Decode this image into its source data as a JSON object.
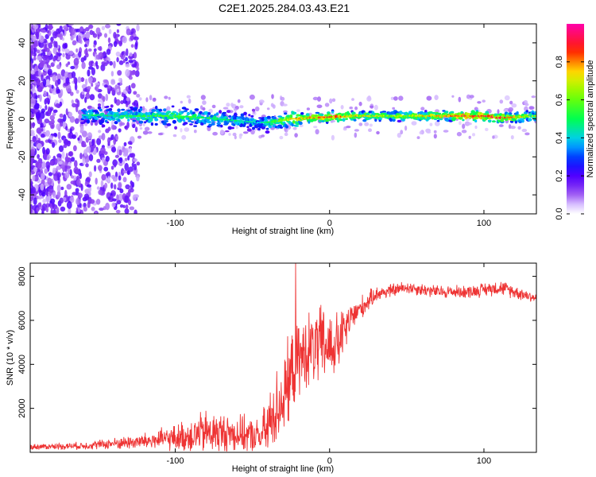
{
  "title": "C2E1.2025.284.03.43.E21",
  "chart_data": [
    {
      "type": "heatmap",
      "name": "spectrogram",
      "xlabel": "Height of straight line (km)",
      "ylabel": "Frequency (Hz)",
      "xlim": [
        -194,
        134
      ],
      "ylim": [
        -50,
        50
      ],
      "x_ticks": [
        -100,
        0,
        100
      ],
      "y_ticks": [
        -40,
        -20,
        0,
        20,
        40
      ],
      "colorbar": {
        "label": "Normalized spectral amplitude",
        "range": [
          0,
          1
        ],
        "ticks": [
          "0.0",
          "0.2",
          "0.4",
          "0.6",
          "0.8"
        ],
        "tick_values": [
          0.0,
          0.2,
          0.4,
          0.6,
          0.8
        ]
      },
      "ridge": {
        "x": [
          -160,
          -130,
          -100,
          -80,
          -60,
          -45,
          -35,
          -25,
          -10,
          0,
          20,
          50,
          80,
          100,
          110,
          134
        ],
        "y": [
          2,
          1.5,
          1.5,
          0.5,
          -1,
          -2,
          -1.5,
          0,
          0.5,
          1,
          1.5,
          1.5,
          1.5,
          1.5,
          0.5,
          1.5
        ],
        "peak_amplitude": [
          0.45,
          0.5,
          0.55,
          0.5,
          0.45,
          0.4,
          0.55,
          0.7,
          0.8,
          0.85,
          0.7,
          0.65,
          0.8,
          0.9,
          0.85,
          0.6
        ]
      }
    },
    {
      "type": "line",
      "name": "snr",
      "xlabel": "Height of straight line (km)",
      "ylabel": "SNR (10 * v/v)",
      "xlim": [
        -194,
        134
      ],
      "ylim": [
        0,
        8600
      ],
      "x_ticks": [
        -100,
        0,
        100
      ],
      "y_ticks": [
        2000,
        4000,
        6000,
        8000
      ],
      "color": "#ee3333",
      "envelope": {
        "x": [
          -194,
          -160,
          -140,
          -120,
          -100,
          -80,
          -60,
          -45,
          -40,
          -35,
          -30,
          -25,
          -22,
          -15,
          -5,
          5,
          15,
          30,
          50,
          70,
          90,
          110,
          125,
          134
        ],
        "mean": [
          250,
          300,
          400,
          500,
          650,
          900,
          850,
          700,
          1100,
          2000,
          2500,
          3500,
          4000,
          4600,
          4800,
          4900,
          6200,
          7200,
          7500,
          7300,
          7300,
          7500,
          7200,
          7000
        ],
        "spread": [
          150,
          200,
          300,
          450,
          700,
          1200,
          1000,
          900,
          1800,
          2000,
          2200,
          2300,
          2000,
          2000,
          2200,
          1700,
          800,
          400,
          350,
          350,
          350,
          400,
          350,
          300
        ]
      },
      "peak": {
        "x": -22,
        "y": 8600
      }
    }
  ]
}
